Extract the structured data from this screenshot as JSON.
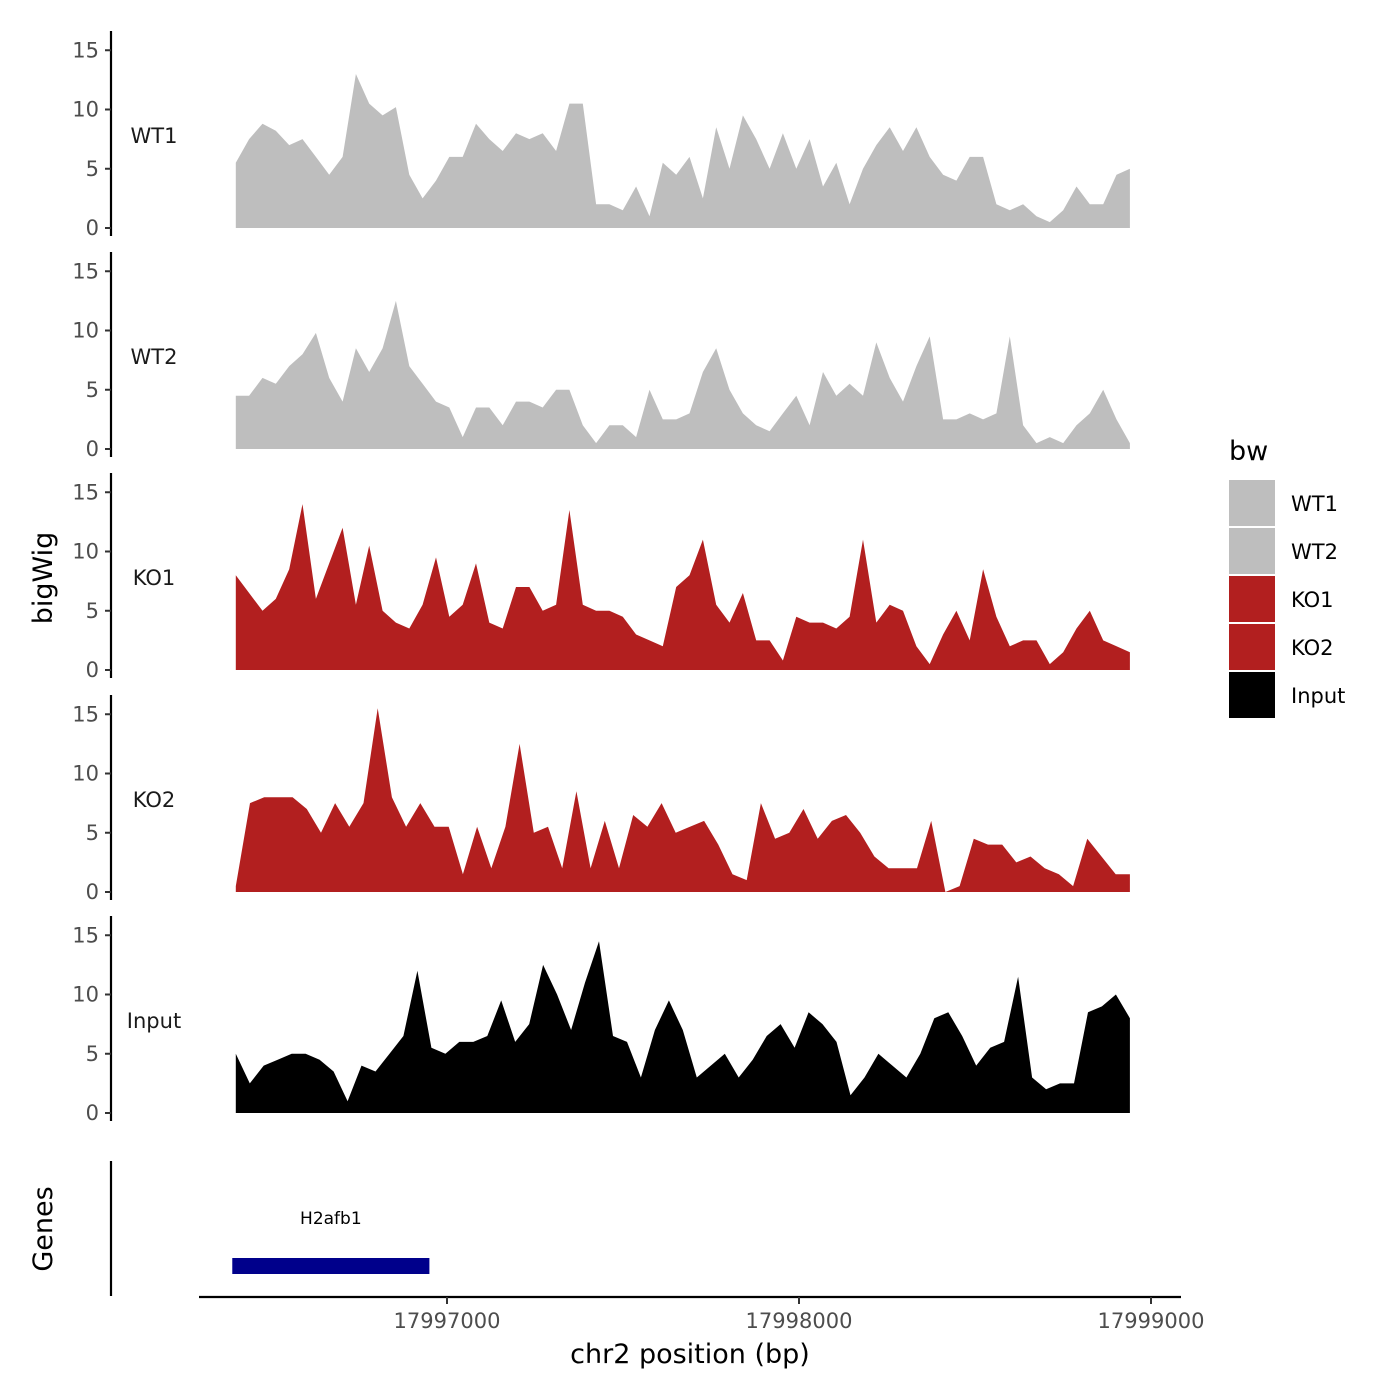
{
  "chart_data": {
    "type": "area",
    "subtype": "genome-browser-tracks",
    "xlabel": "chr2 position (bp)",
    "y_panel_label": "bigWig",
    "genes_panel_label": "Genes",
    "x_range": [
      17996400,
      17998940
    ],
    "x_ticks": [
      17997000,
      17998000,
      17999000
    ],
    "x_tick_labels": [
      "17997000",
      "17998000",
      "17999000"
    ],
    "y_range": [
      0,
      16
    ],
    "y_ticks": [
      0,
      5,
      10,
      15
    ],
    "y_tick_labels": [
      "0",
      "5",
      "10",
      "15"
    ],
    "legend": {
      "title": "bw",
      "entries": [
        {
          "label": "WT1",
          "color": "#bebebe"
        },
        {
          "label": "WT2",
          "color": "#bebebe"
        },
        {
          "label": "KO1",
          "color": "#b21f1f"
        },
        {
          "label": "KO2",
          "color": "#b21f1f"
        },
        {
          "label": "Input",
          "color": "#000000"
        }
      ]
    },
    "genes": [
      {
        "name": "H2afb1",
        "start": 17996390,
        "end": 17996950,
        "color": "#00008b"
      }
    ],
    "series": [
      {
        "name": "WT1",
        "color": "#bebebe",
        "x_start": 17996400,
        "x_step": 40,
        "values": [
          5.5,
          7.5,
          8.8,
          8.2,
          7.0,
          7.5,
          6.0,
          4.5,
          6.0,
          13.0,
          10.5,
          9.5,
          10.2,
          4.5,
          2.5,
          4.0,
          6.0,
          6.0,
          8.8,
          7.5,
          6.5,
          8.0,
          7.5,
          8.0,
          6.5,
          10.5,
          10.5,
          2.0,
          2.0,
          1.5,
          3.5,
          1.0,
          5.5,
          4.5,
          6.0,
          2.5,
          8.5,
          5.0,
          9.5,
          7.5,
          5.0,
          8.0,
          5.0,
          7.5,
          3.5,
          5.5,
          2.0,
          5.0,
          7.0,
          8.5,
          6.5,
          8.5,
          6.0,
          4.5,
          4.0,
          6.0,
          6.0,
          2.0,
          1.5,
          2.0,
          1.0,
          0.5,
          1.5,
          3.5,
          2.0,
          2.0,
          4.5,
          5.0
        ]
      },
      {
        "name": "WT2",
        "color": "#bebebe",
        "x_start": 17996400,
        "x_step": 40,
        "values": [
          4.5,
          4.5,
          6.0,
          5.5,
          7.0,
          8.0,
          9.8,
          6.0,
          4.0,
          8.5,
          6.5,
          8.5,
          12.5,
          7.0,
          5.5,
          4.0,
          3.5,
          1.0,
          3.5,
          3.5,
          2.0,
          4.0,
          4.0,
          3.5,
          5.0,
          5.0,
          2.0,
          0.5,
          2.0,
          2.0,
          1.0,
          5.0,
          2.5,
          2.5,
          3.0,
          6.5,
          8.5,
          5.0,
          3.0,
          2.0,
          1.5,
          3.0,
          4.5,
          2.0,
          6.5,
          4.5,
          5.5,
          4.5,
          9.0,
          6.0,
          4.0,
          7.0,
          9.5,
          2.5,
          2.5,
          3.0,
          2.5,
          3.0,
          9.5,
          2.0,
          0.5,
          1.0,
          0.5,
          2.0,
          3.0,
          5.0,
          2.5,
          0.5
        ]
      },
      {
        "name": "KO1",
        "color": "#b21f1f",
        "x_start": 17996400,
        "x_step": 40,
        "values": [
          8.0,
          6.5,
          5.0,
          6.0,
          8.5,
          14.0,
          6.0,
          9.0,
          12.0,
          5.5,
          10.5,
          5.0,
          4.0,
          3.5,
          5.5,
          9.5,
          4.5,
          5.5,
          9.0,
          4.0,
          3.5,
          7.0,
          7.0,
          5.0,
          5.5,
          13.5,
          5.5,
          5.0,
          5.0,
          4.5,
          3.0,
          2.5,
          2.0,
          7.0,
          8.0,
          11.0,
          5.5,
          4.0,
          6.5,
          2.5,
          2.5,
          0.8,
          4.5,
          4.0,
          4.0,
          3.5,
          4.5,
          11.0,
          4.0,
          5.5,
          5.0,
          2.0,
          0.5,
          3.0,
          5.0,
          2.5,
          8.5,
          4.5,
          2.0,
          2.5,
          2.5,
          0.5,
          1.5,
          3.5,
          5.0,
          2.5,
          2.0,
          1.5
        ]
      },
      {
        "name": "KO2",
        "color": "#b21f1f",
        "x_start": 17996400,
        "x_step": 40,
        "values": [
          0.5,
          7.5,
          8.0,
          8.0,
          8.0,
          7.0,
          5.0,
          7.5,
          5.5,
          7.5,
          15.5,
          8.0,
          5.5,
          7.5,
          5.5,
          5.5,
          1.5,
          5.5,
          2.0,
          5.5,
          12.5,
          5.0,
          5.5,
          2.0,
          8.5,
          2.0,
          6.0,
          2.0,
          6.5,
          5.5,
          7.5,
          5.0,
          5.5,
          6.0,
          4.0,
          1.5,
          1.0,
          7.5,
          4.5,
          5.0,
          7.0,
          4.5,
          6.0,
          6.5,
          5.0,
          3.0,
          2.0,
          2.0,
          2.0,
          6.0,
          0.0,
          0.5,
          4.5,
          4.0,
          4.0,
          2.5,
          3.0,
          2.0,
          1.5,
          0.5,
          4.5,
          3.0,
          1.5,
          1.5
        ]
      },
      {
        "name": "Input",
        "color": "#000000",
        "x_start": 17996400,
        "x_step": 40,
        "values": [
          5.0,
          2.5,
          4.0,
          4.5,
          5.0,
          5.0,
          4.5,
          3.5,
          1.0,
          4.0,
          3.5,
          5.0,
          6.5,
          12.0,
          5.5,
          5.0,
          6.0,
          6.0,
          6.5,
          9.5,
          6.0,
          7.5,
          12.5,
          10.0,
          7.0,
          11.0,
          14.5,
          6.5,
          6.0,
          3.0,
          7.0,
          9.5,
          7.0,
          3.0,
          4.0,
          5.0,
          3.0,
          4.5,
          6.5,
          7.5,
          5.5,
          8.5,
          7.5,
          6.0,
          1.5,
          3.0,
          5.0,
          4.0,
          3.0,
          5.0,
          8.0,
          8.5,
          6.5,
          4.0,
          5.5,
          6.0,
          11.5,
          3.0,
          2.0,
          2.5,
          2.5,
          8.5,
          9.0,
          10.0,
          8.0
        ]
      }
    ]
  }
}
